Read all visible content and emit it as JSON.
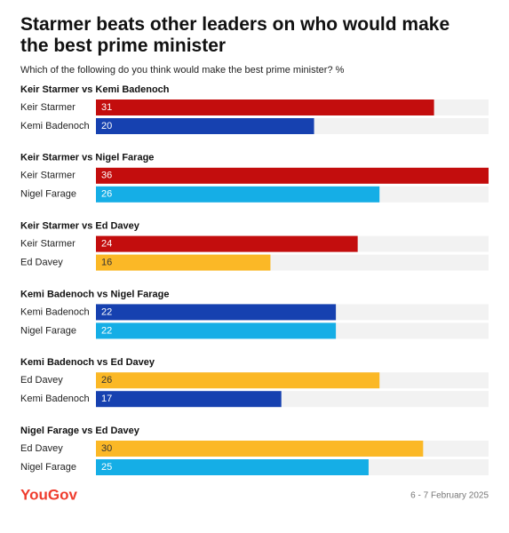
{
  "chart_data": {
    "type": "bar",
    "title": "Starmer beats other leaders on who would make the best prime minister",
    "subtitle": "Which of the following do you think would make the best prime minister? %",
    "xlim": [
      0,
      36
    ],
    "groups": [
      {
        "title": "Keir Starmer vs Kemi Badenoch",
        "bars": [
          {
            "name": "Keir Starmer",
            "value": 31,
            "color": "#c30d0d"
          },
          {
            "name": "Kemi Badenoch",
            "value": 20,
            "color": "#1641b0"
          }
        ]
      },
      {
        "title": "Keir Starmer vs Nigel Farage",
        "bars": [
          {
            "name": "Keir Starmer",
            "value": 36,
            "color": "#c30d0d"
          },
          {
            "name": "Nigel Farage",
            "value": 26,
            "color": "#15aee6"
          }
        ]
      },
      {
        "title": "Keir Starmer vs Ed Davey",
        "bars": [
          {
            "name": "Keir Starmer",
            "value": 24,
            "color": "#c30d0d"
          },
          {
            "name": "Ed Davey",
            "value": 16,
            "color": "#fbb826"
          }
        ]
      },
      {
        "title": "Kemi Badenoch vs Nigel Farage",
        "bars": [
          {
            "name": "Kemi Badenoch",
            "value": 22,
            "color": "#1641b0"
          },
          {
            "name": "Nigel Farage",
            "value": 22,
            "color": "#15aee6"
          }
        ]
      },
      {
        "title": "Kemi Badenoch vs Ed Davey",
        "bars": [
          {
            "name": "Ed Davey",
            "value": 26,
            "color": "#fbb826"
          },
          {
            "name": "Kemi Badenoch",
            "value": 17,
            "color": "#1641b0"
          }
        ]
      },
      {
        "title": "Nigel Farage vs Ed Davey",
        "bars": [
          {
            "name": "Ed Davey",
            "value": 30,
            "color": "#fbb826"
          },
          {
            "name": "Nigel Farage",
            "value": 25,
            "color": "#15aee6"
          }
        ]
      }
    ],
    "brand": "YouGov",
    "date": "6 - 7 February 2025"
  }
}
